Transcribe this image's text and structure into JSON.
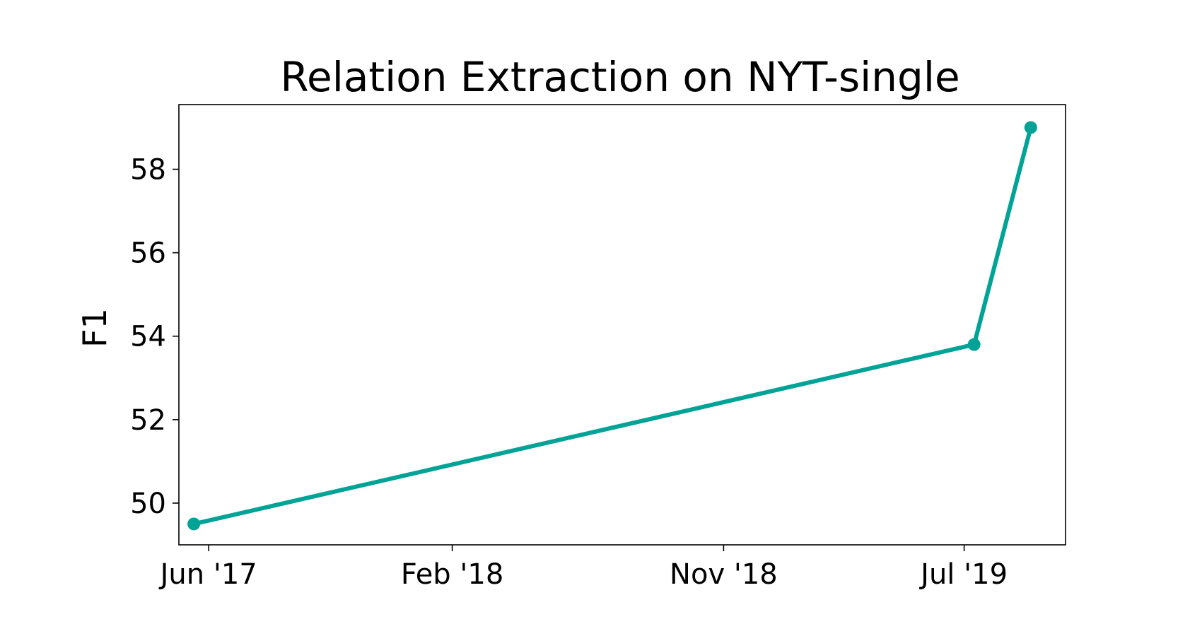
{
  "chart_data": {
    "type": "line",
    "title": "Relation Extraction on NYT-single",
    "xlabel": "",
    "ylabel": "F1",
    "x_ticks": [
      "Jun '17",
      "Feb '18",
      "Nov '18",
      "Jul '19"
    ],
    "x_tick_dates": [
      "2017-06-01",
      "2018-02-01",
      "2018-11-01",
      "2019-07-01"
    ],
    "y_ticks": [
      50,
      52,
      54,
      56,
      58
    ],
    "xlim": [
      "2017-05-02",
      "2019-10-11"
    ],
    "ylim": [
      49.0,
      59.55
    ],
    "grid": false,
    "series": [
      {
        "color": "#00a396",
        "x": [
          "2017-05-17",
          "2019-07-11",
          "2019-09-06"
        ],
        "y": [
          49.5,
          53.8,
          59.0
        ]
      }
    ]
  }
}
